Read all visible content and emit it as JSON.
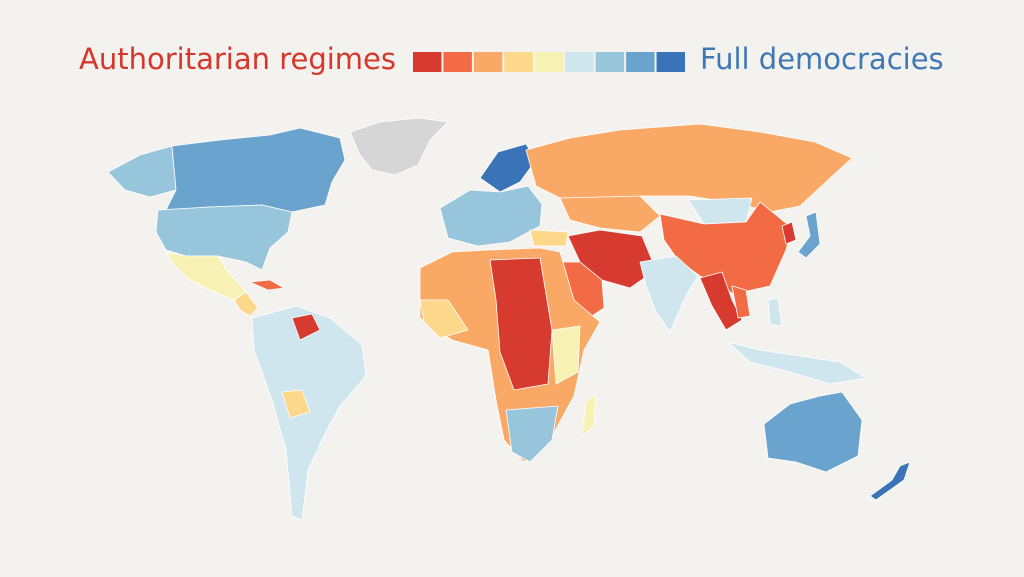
{
  "legend": {
    "left_label": "Authoritarian regimes",
    "right_label": "Full democracies",
    "scale_colors": [
      "#d73a2f",
      "#f26b45",
      "#f9a965",
      "#fdd88a",
      "#f8f1b4",
      "#cfe6ee",
      "#97c5dc",
      "#6ba3cf",
      "#3a73b7"
    ]
  }
}
